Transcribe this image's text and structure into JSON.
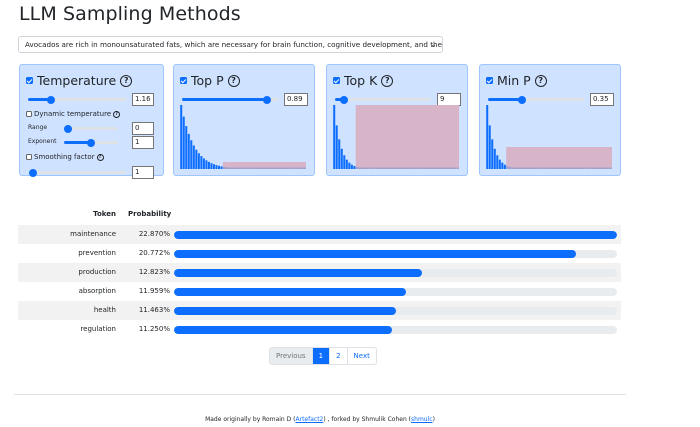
{
  "page": {
    "title": "LLM Sampling Methods",
    "prompt": "Avocados are rich in monounsaturated fats, which are necessary for brain function, cognitive development, and the ____"
  },
  "panels": {
    "temperature": {
      "title": "Temperature",
      "help": "?",
      "value": "1.16",
      "slider_fraction": 0.23,
      "dynamic_label": "Dynamic temperature",
      "range_label": "Range",
      "range_value": "0",
      "range_fraction": 0.08,
      "exponent_label": "Exponent",
      "exponent_value": "1",
      "exponent_fraction": 0.5,
      "smoothing_label": "Smoothing factor",
      "smoothing_value": "1",
      "smoothing_fraction": 0.03
    },
    "top_p": {
      "title": "Top P",
      "help": "?",
      "value": "0.89",
      "slider_fraction": 0.89
    },
    "top_k": {
      "title": "Top K",
      "help": "?",
      "value": "9",
      "slider_fraction": 0.09
    },
    "min_p": {
      "title": "Min P",
      "help": "?",
      "value": "0.35",
      "slider_fraction": 0.35
    }
  },
  "table": {
    "headers": {
      "token": "Token",
      "probability": "Probability"
    },
    "rows": [
      {
        "token": "maintenance",
        "probability": "22.870%",
        "value": 22.87
      },
      {
        "token": "prevention",
        "probability": "20.772%",
        "value": 20.772
      },
      {
        "token": "production",
        "probability": "12.823%",
        "value": 12.823
      },
      {
        "token": "absorption",
        "probability": "11.959%",
        "value": 11.959
      },
      {
        "token": "health",
        "probability": "11.463%",
        "value": 11.463
      },
      {
        "token": "regulation",
        "probability": "11.250%",
        "value": 11.25
      }
    ]
  },
  "pagination": {
    "previous": "Previous",
    "page1": "1",
    "page2": "2",
    "next": "Next"
  },
  "footer": {
    "prefix": "Made originally by Romain D (",
    "link1": "Artefact2",
    "middle": ") , forked by Shmulik Cohen (",
    "link2": "shmulc",
    "suffix": ")"
  },
  "colors": {
    "accent": "#0d6efd",
    "panel_bg": "#cfe2ff",
    "cutoff_region": "#d8b4c8"
  }
}
